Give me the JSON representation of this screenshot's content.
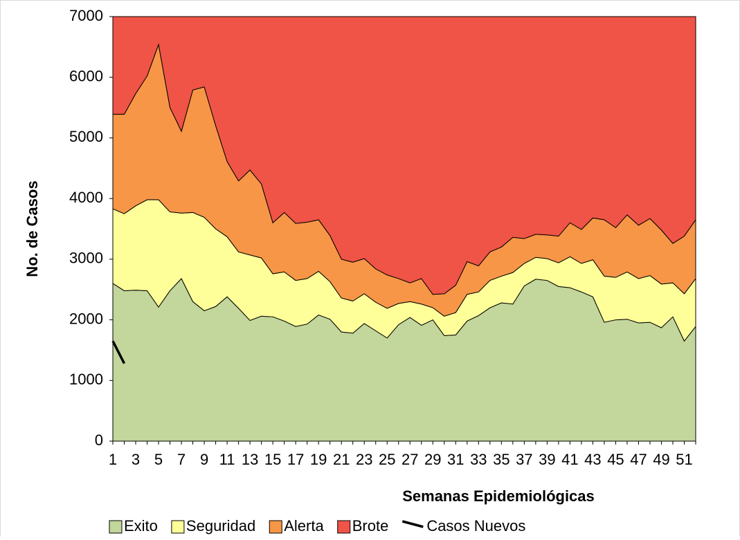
{
  "chart_data": {
    "type": "area",
    "stacked": true,
    "x_label": "Semanas Epidemiológicas",
    "y_label": "No. de Casos",
    "categories": [
      1,
      null,
      3,
      null,
      5,
      null,
      7,
      null,
      9,
      null,
      11,
      null,
      13,
      null,
      15,
      null,
      17,
      null,
      19,
      null,
      21,
      null,
      23,
      null,
      25,
      null,
      27,
      null,
      29,
      null,
      31,
      null,
      33,
      null,
      35,
      null,
      37,
      null,
      39,
      null,
      41,
      null,
      43,
      null,
      45,
      null,
      47,
      null,
      49,
      null,
      51,
      null
    ],
    "ylim": [
      0,
      7000
    ],
    "yticks": [
      0,
      1000,
      2000,
      3000,
      4000,
      5000,
      6000,
      7000
    ],
    "series": [
      {
        "name": "Exito",
        "color": "#c3d69b",
        "values": [
          2600,
          2480,
          2490,
          2480,
          2210,
          2480,
          2680,
          2300,
          2150,
          2220,
          2380,
          2190,
          1990,
          2060,
          2050,
          1980,
          1890,
          1930,
          2080,
          2010,
          1800,
          1780,
          1940,
          1820,
          1700,
          1920,
          2040,
          1910,
          2000,
          1740,
          1750,
          1980,
          2070,
          2200,
          2280,
          2260,
          2560,
          2670,
          2650,
          2550,
          2530,
          2460,
          2380,
          1960,
          2000,
          2010,
          1950,
          1960,
          1870,
          2050,
          1650,
          1890
        ]
      },
      {
        "name": "Seguridad",
        "color": "#ffff99",
        "values": [
          1230,
          1270,
          1390,
          1500,
          1770,
          1300,
          1080,
          1470,
          1540,
          1280,
          990,
          930,
          1080,
          960,
          710,
          810,
          760,
          750,
          720,
          620,
          560,
          530,
          490,
          470,
          490,
          350,
          260,
          350,
          200,
          320,
          370,
          440,
          390,
          450,
          440,
          520,
          370,
          360,
          360,
          390,
          510,
          470,
          610,
          760,
          700,
          780,
          730,
          770,
          720,
          560,
          780,
          790
        ]
      },
      {
        "name": "Alerta",
        "color": "#f79646",
        "values": [
          1560,
          1640,
          1850,
          2040,
          2560,
          1720,
          1350,
          2020,
          2150,
          1700,
          1240,
          1170,
          1400,
          1220,
          840,
          980,
          940,
          930,
          850,
          760,
          640,
          640,
          580,
          550,
          550,
          410,
          310,
          420,
          220,
          370,
          450,
          540,
          430,
          470,
          480,
          580,
          410,
          380,
          390,
          440,
          560,
          560,
          690,
          930,
          820,
          940,
          880,
          940,
          890,
          650,
          950,
          970
        ]
      },
      {
        "name": "Brote",
        "color": "#ef5446",
        "values": [
          1610,
          1610,
          1270,
          980,
          460,
          1500,
          1890,
          1210,
          1160,
          1800,
          2390,
          2710,
          2530,
          2760,
          3400,
          3230,
          3410,
          3390,
          3350,
          3610,
          4000,
          4050,
          3990,
          4160,
          4260,
          4320,
          4390,
          4320,
          4580,
          4570,
          4430,
          4040,
          4110,
          3880,
          3800,
          3640,
          3660,
          3590,
          3600,
          3620,
          3400,
          3510,
          3320,
          3350,
          3480,
          3270,
          3440,
          3330,
          3520,
          3740,
          3620,
          3350
        ]
      },
      {
        "name": "Casos Nuevos",
        "type": "line",
        "color": "#000000",
        "values": [
          1650,
          1280,
          null,
          null,
          null,
          null,
          null,
          null,
          null,
          null,
          null,
          null,
          null,
          null,
          null,
          null,
          null,
          null,
          null,
          null,
          null,
          null,
          null,
          null,
          null,
          null,
          null,
          null,
          null,
          null,
          null,
          null,
          null,
          null,
          null,
          null,
          null,
          null,
          null,
          null,
          null,
          null,
          null,
          null,
          null,
          null,
          null,
          null,
          null,
          null,
          null,
          null
        ]
      }
    ]
  }
}
